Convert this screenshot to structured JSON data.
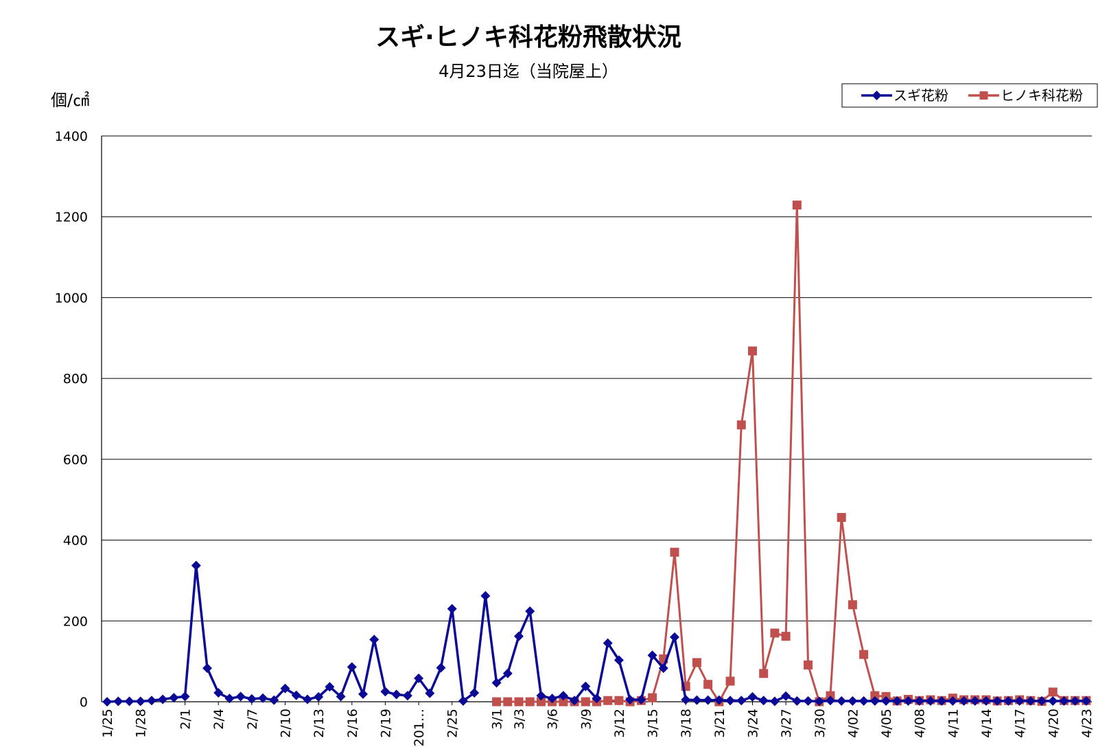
{
  "chart_data": {
    "type": "line",
    "title": "スギ·ヒノキ科花粉飛散状況",
    "subtitle": "4月23日迄（当院屋上）",
    "ylabel": "個/㎠",
    "ylim": [
      0,
      1400
    ],
    "yticks": [
      "0",
      "200",
      "400",
      "600",
      "800",
      "1000",
      "1200",
      "1400"
    ],
    "grid": true,
    "legend_position": "top-right",
    "x_tick_labels": [
      {
        "i": 0,
        "label": "1/25"
      },
      {
        "i": 3,
        "label": "1/28"
      },
      {
        "i": 7,
        "label": "2/1"
      },
      {
        "i": 10,
        "label": "2/4"
      },
      {
        "i": 13,
        "label": "2/7"
      },
      {
        "i": 16,
        "label": "2/10"
      },
      {
        "i": 19,
        "label": "2/13"
      },
      {
        "i": 22,
        "label": "2/16"
      },
      {
        "i": 25,
        "label": "2/19"
      },
      {
        "i": 28,
        "label": "201…"
      },
      {
        "i": 31,
        "label": "2/25"
      },
      {
        "i": 35,
        "label": "3/1"
      },
      {
        "i": 37,
        "label": "3/3"
      },
      {
        "i": 40,
        "label": "3/6"
      },
      {
        "i": 43,
        "label": "3/9"
      },
      {
        "i": 46,
        "label": "3/12"
      },
      {
        "i": 49,
        "label": "3/15"
      },
      {
        "i": 52,
        "label": "3/18"
      },
      {
        "i": 55,
        "label": "3/21"
      },
      {
        "i": 58,
        "label": "3/24"
      },
      {
        "i": 61,
        "label": "3/27"
      },
      {
        "i": 64,
        "label": "3/30"
      },
      {
        "i": 67,
        "label": "4/02"
      },
      {
        "i": 70,
        "label": "4/05"
      },
      {
        "i": 73,
        "label": "4/08"
      },
      {
        "i": 76,
        "label": "4/11"
      },
      {
        "i": 79,
        "label": "4/14"
      },
      {
        "i": 82,
        "label": "4/17"
      },
      {
        "i": 85,
        "label": "4/20"
      },
      {
        "i": 88,
        "label": "4/23"
      }
    ],
    "series": [
      {
        "name": "スギ花粉",
        "color": "#0a0a96",
        "marker": "diamond",
        "x": [
          0,
          1,
          2,
          3,
          4,
          5,
          6,
          7,
          8,
          9,
          10,
          11,
          12,
          13,
          14,
          15,
          16,
          17,
          18,
          19,
          20,
          21,
          22,
          23,
          24,
          25,
          26,
          27,
          28,
          29,
          30,
          31,
          32,
          33,
          34,
          35,
          36,
          37,
          38,
          39,
          40,
          41,
          42,
          43,
          44,
          45,
          46,
          47,
          48,
          49,
          50,
          51,
          52,
          53,
          54,
          55,
          56,
          57,
          58,
          59,
          60,
          61,
          62,
          63,
          64,
          65,
          66,
          67,
          68,
          69,
          70,
          71,
          72,
          73,
          74,
          75,
          76,
          77,
          78,
          79,
          80,
          81,
          82,
          83,
          84,
          85,
          86,
          87,
          88
        ],
        "values": [
          0,
          1,
          1,
          1,
          3,
          6,
          10,
          13,
          337,
          83,
          22,
          8,
          13,
          7,
          9,
          4,
          33,
          16,
          6,
          12,
          37,
          13,
          86,
          19,
          154,
          25,
          18,
          15,
          58,
          21,
          84,
          230,
          2,
          22,
          262,
          47,
          70,
          162,
          224,
          15,
          8,
          15,
          3,
          38,
          8,
          145,
          103,
          5,
          5,
          115,
          83,
          160,
          5,
          4,
          4,
          4,
          3,
          3,
          12,
          3,
          1,
          14,
          2,
          2,
          1,
          3,
          2,
          2,
          2,
          2,
          2,
          2,
          2,
          2,
          2,
          2,
          2,
          2,
          2,
          2,
          2,
          2,
          2,
          2,
          2,
          2,
          2,
          2,
          2
        ]
      },
      {
        "name": "ヒノキ科花粉",
        "color": "#c0504d",
        "marker": "square",
        "x": [
          35,
          36,
          37,
          38,
          39,
          40,
          41,
          42,
          43,
          44,
          45,
          46,
          47,
          48,
          49,
          50,
          51,
          52,
          53,
          54,
          55,
          56,
          57,
          58,
          59,
          60,
          61,
          62,
          63,
          64,
          65,
          66,
          67,
          68,
          69,
          70,
          71,
          72,
          73,
          74,
          75,
          76,
          77,
          78,
          79,
          80,
          81,
          82,
          83,
          84,
          85,
          86,
          87,
          88
        ],
        "values": [
          0,
          0,
          0,
          0,
          0,
          0,
          0,
          0,
          0,
          0,
          3,
          3,
          0,
          3,
          10,
          106,
          370,
          38,
          97,
          43,
          0,
          51,
          685,
          868,
          70,
          170,
          162,
          1229,
          91,
          0,
          15,
          456,
          240,
          117,
          15,
          13,
          2,
          6,
          3,
          5,
          3,
          9,
          5,
          5,
          5,
          2,
          3,
          5,
          3,
          1,
          24,
          3,
          3,
          3
        ]
      }
    ]
  }
}
